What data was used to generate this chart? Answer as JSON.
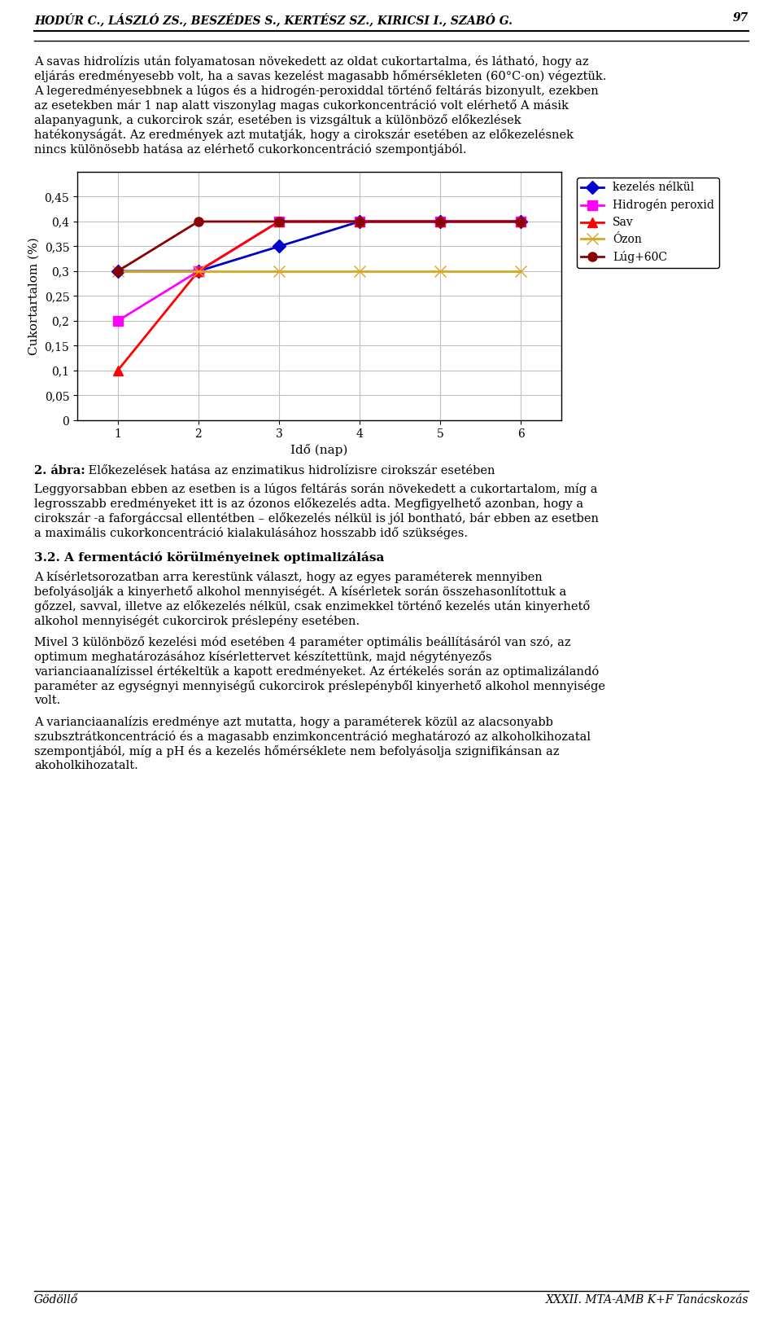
{
  "header_text": "HODÚR C., LÁSZLÓ ZS., BESZÉDES S., KERTÉSZ SZ., KIRICSI I., SZABÓ G.",
  "header_page": "97",
  "x_data": [
    1,
    2,
    3,
    4,
    5,
    6
  ],
  "series": [
    {
      "label": "kezelés nélkül",
      "color": "#0000CD",
      "marker": "D",
      "linewidth": 2,
      "values": [
        0.3,
        0.3,
        0.35,
        0.4,
        0.4,
        0.4
      ]
    },
    {
      "label": "Hidrogén peroxid",
      "color": "#FF00FF",
      "marker": "s",
      "linewidth": 2,
      "values": [
        0.2,
        0.3,
        0.4,
        0.4,
        0.4,
        0.4
      ]
    },
    {
      "label": "Sav",
      "color": "#FF0000",
      "marker": "^",
      "linewidth": 2,
      "values": [
        0.1,
        0.3,
        0.4,
        0.4,
        0.4,
        0.4
      ]
    },
    {
      "label": "Ózon",
      "color": "#DAA520",
      "marker": "x",
      "linewidth": 2,
      "values": [
        0.3,
        0.3,
        0.3,
        0.3,
        0.3,
        0.3
      ]
    },
    {
      "label": "Lúg+60C",
      "color": "#8B0000",
      "marker": "o",
      "linewidth": 2,
      "values": [
        0.3,
        0.4,
        0.4,
        0.4,
        0.4,
        0.4
      ]
    }
  ],
  "xlabel": "Idő (nap)",
  "ylabel": "Cukortartalom (%)",
  "yticks": [
    0,
    0.05,
    0.1,
    0.15,
    0.2,
    0.25,
    0.3,
    0.35,
    0.4,
    0.45
  ],
  "ytick_labels": [
    "0",
    "0,05",
    "0,1",
    "0,15",
    "0,2",
    "0,25",
    "0,3",
    "0,35",
    "0,4",
    "0,45"
  ],
  "xticks": [
    1,
    2,
    3,
    4,
    5,
    6
  ],
  "caption_bold": "2. ábra:",
  "caption_normal": " Előkezelések hatása az enzimatikus hidrolízisre cirokszár esetében",
  "para1_lines": [
    "A savas hidrolízis után folyamatosan növekedett az oldat cukortartalma, és látható, hogy az",
    "eljárás eredményesebb volt, ha a savas kezelést magasabb hőmérsékleten (60°C-on) végeztük.",
    "A legeredményesebbnek a lúgos és a hidrogén-peroxiddal történő feltárás bizonyult, ezekben",
    "az esetekben már 1 nap alatt viszonylag magas cukorkoncentráció volt elérhető A másik",
    "alapanyagunk, a cukorcirok szár, esetében is vizsgáltuk a különböző előkezlések",
    "hatékonyságát. Az eredmények azt mutatják, hogy a cirokszár esetében az előkezelésnek",
    "nincs különösebb hatása az elérhető cukorkoncentráció szempontjából."
  ],
  "para2_lines": [
    "Leggyorsabban ebben az esetben is a lúgos feltárás során növekedett a cukortartalom, míg a",
    "legrosszabb eredményeket itt is az ózonos előkezelés adta. Megfigyelhető azonban, hogy a",
    "cirokszár -a faforgáccsal ellentétben – előkezelés nélkül is jól bontható, bár ebben az esetben",
    "a maximális cukorkoncentráció kialakulásához hosszabb idő szükséges."
  ],
  "section_title": "3.2. A fermentáció körülményeinek optimalizálása",
  "para3_lines": [
    "A kísérletsorozatban arra kerestünk választ, hogy az egyes paraméterek mennyiben",
    "befolyásolják a kinyerhető alkohol mennyiségét. A kísérletek során összehasonlítottuk a",
    "gőzzel, savval, illetve az előkezelés nélkül, csak enzimekkel történő kezelés után kinyerhető",
    "alkohol mennyiségét cukorcirok préslepény esetében."
  ],
  "para4_lines": [
    "Mivel 3 különböző kezelési mód esetében 4 paraméter optimális beállításáról van szó, az",
    "optimum meghatározásához kísérlettervet készítettünk, majd négytényezős",
    "varianciaanalízissel értékeltük a kapott eredményeket. Az értékelés során az optimalizálandó",
    "paraméter az egységnyi mennyiségű cukorcirok préslepényből kinyerhető alkohol mennyisége",
    "volt."
  ],
  "para5_lines": [
    "A varianciaanalízis eredménye azt mutatta, hogy a paraméterek közül az alacsonyabb",
    "szubsztrátkoncentráció és a magasabb enzimkoncentráció meghatározó az alkoholkihozatal",
    "szempontjából, míg a pH és a kezelés hőmérséklete nem befolyásolja szignifikánsan az",
    "akoholkihozatalt."
  ],
  "footer_left": "Gödöllő",
  "footer_right": "XXXII. MTA-AMB K+F Tanácskozás",
  "background_color": "#FFFFFF",
  "grid_color": "#C0C0C0"
}
